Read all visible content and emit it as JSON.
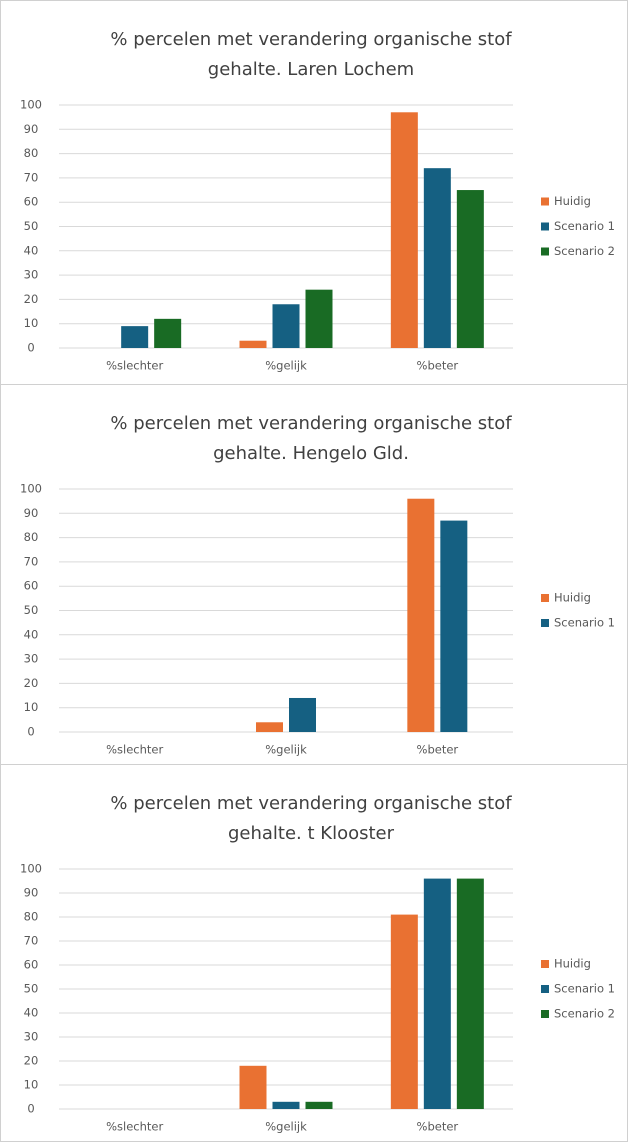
{
  "chart_data": [
    {
      "type": "bar",
      "title": "% percelen met verandering organische stof gehalte. Laren Lochem",
      "categories": [
        "%slechter",
        "%gelijk",
        "%beter"
      ],
      "series": [
        {
          "name": "Huidig",
          "color": "#e97132",
          "values": [
            0,
            3,
            97
          ]
        },
        {
          "name": "Scenario 1",
          "color": "#156082",
          "values": [
            9,
            18,
            74
          ]
        },
        {
          "name": "Scenario 2",
          "color": "#196b24",
          "values": [
            12,
            24,
            65
          ]
        }
      ],
      "ylim": [
        0,
        100
      ],
      "yticks": [
        0,
        10,
        20,
        30,
        40,
        50,
        60,
        70,
        80,
        90,
        100
      ],
      "grid": true,
      "legend": "right"
    },
    {
      "type": "bar",
      "title": "% percelen met verandering organische stof gehalte. Hengelo Gld.",
      "categories": [
        "%slechter",
        "%gelijk",
        "%beter"
      ],
      "series": [
        {
          "name": "Huidig",
          "color": "#e97132",
          "values": [
            0,
            4,
            96
          ]
        },
        {
          "name": "Scenario 1",
          "color": "#156082",
          "values": [
            0,
            14,
            87
          ]
        }
      ],
      "ylim": [
        0,
        100
      ],
      "yticks": [
        0,
        10,
        20,
        30,
        40,
        50,
        60,
        70,
        80,
        90,
        100
      ],
      "grid": true,
      "legend": "right"
    },
    {
      "type": "bar",
      "title": "% percelen met verandering organische stof gehalte. t Klooster",
      "categories": [
        "%slechter",
        "%gelijk",
        "%beter"
      ],
      "series": [
        {
          "name": "Huidig",
          "color": "#e97132",
          "values": [
            0,
            18,
            81
          ]
        },
        {
          "name": "Scenario 1",
          "color": "#156082",
          "values": [
            0,
            3,
            96
          ]
        },
        {
          "name": "Scenario 2",
          "color": "#196b24",
          "values": [
            0,
            3,
            96
          ]
        }
      ],
      "ylim": [
        0,
        100
      ],
      "yticks": [
        0,
        10,
        20,
        30,
        40,
        50,
        60,
        70,
        80,
        90,
        100
      ],
      "grid": true,
      "legend": "right"
    }
  ]
}
